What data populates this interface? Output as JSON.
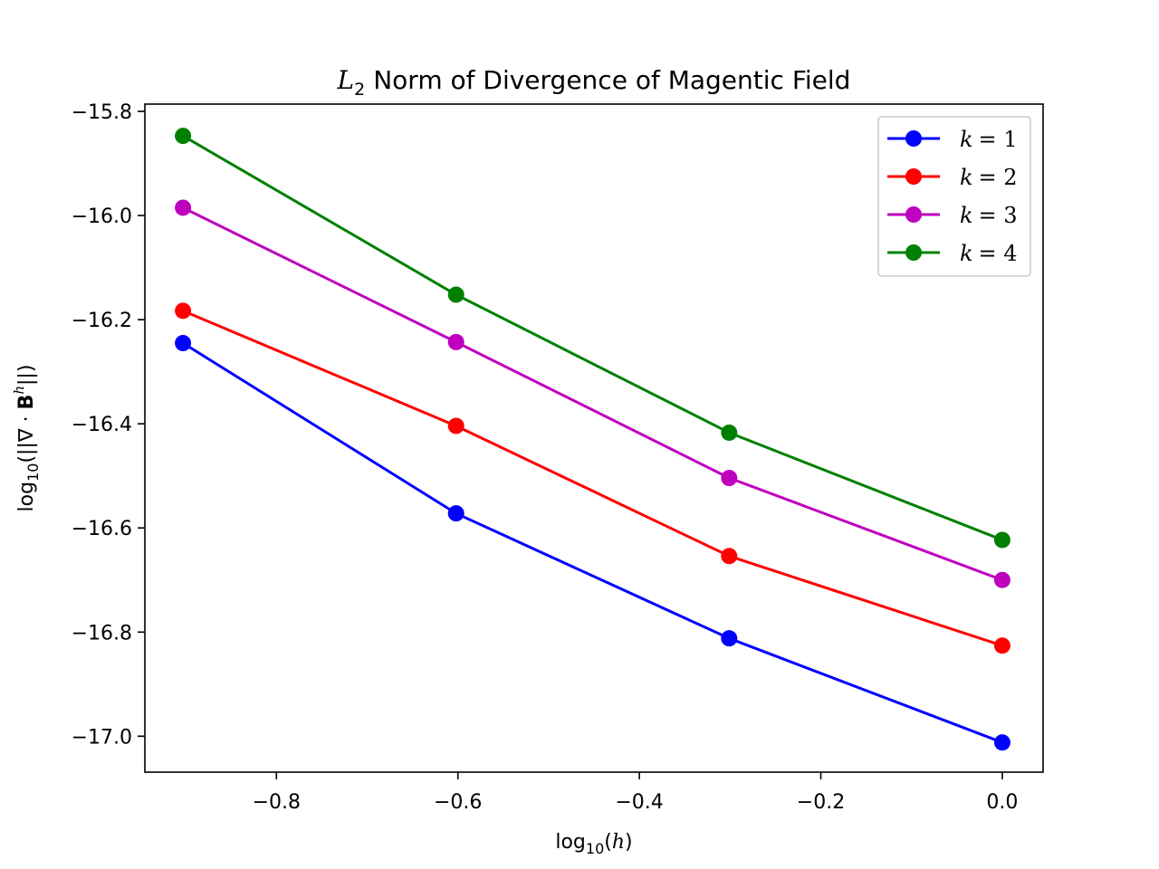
{
  "chart_data": {
    "type": "line",
    "title": "Norm of Divergence of Magentic Field",
    "title_prefix": "L",
    "title_prefix_sub": "2",
    "xlabel": "log10(h)",
    "xlabel_parts": {
      "log": "log",
      "sub": "10",
      "open": "(",
      "var": "h",
      "close": ")"
    },
    "ylabel": "log10(||∇ · B^h||)",
    "ylabel_parts": {
      "log": "log",
      "sub": "10",
      "open": "(||∇ · ",
      "bold": "B",
      "sup": "h",
      "close": "||)"
    },
    "xlim": [
      -0.945,
      0.045
    ],
    "ylim": [
      -17.069,
      -15.786
    ],
    "xticks": [
      -0.8,
      -0.6,
      -0.4,
      -0.2,
      0.0
    ],
    "xtick_labels": [
      "−0.8",
      "−0.6",
      "−0.4",
      "−0.2",
      "0.0"
    ],
    "yticks": [
      -15.8,
      -16.0,
      -16.2,
      -16.4,
      -16.6,
      -16.8,
      -17.0
    ],
    "ytick_labels": [
      "−15.8",
      "−16.0",
      "−16.2",
      "−16.4",
      "−16.6",
      "−16.8",
      "−17.0"
    ],
    "x": [
      -0.903,
      -0.602,
      -0.301,
      0.0
    ],
    "series": [
      {
        "name": "k = 1",
        "var": "k",
        "eq": "= 1",
        "color": "#0000ff",
        "values": [
          -16.245,
          -16.572,
          -16.812,
          -17.012
        ]
      },
      {
        "name": "k = 2",
        "var": "k",
        "eq": "= 2",
        "color": "#ff0000",
        "values": [
          -16.183,
          -16.404,
          -16.654,
          -16.826
        ]
      },
      {
        "name": "k = 3",
        "var": "k",
        "eq": "= 3",
        "color": "#bf00bf",
        "values": [
          -15.985,
          -16.243,
          -16.504,
          -16.7
        ]
      },
      {
        "name": "k = 4",
        "var": "k",
        "eq": "= 4",
        "color": "#008000",
        "values": [
          -15.847,
          -16.152,
          -16.417,
          -16.623
        ]
      }
    ],
    "legend_position": "top-right",
    "grid": false
  }
}
